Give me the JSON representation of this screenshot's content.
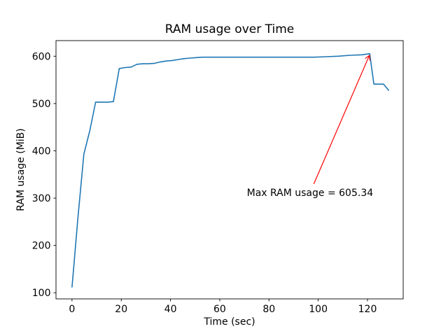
{
  "chart_data": {
    "type": "line",
    "title": "RAM usage over Time",
    "xlabel": "Time (sec)",
    "ylabel": "RAM usage (MiB)",
    "xlim": [
      -6.5,
      134.5
    ],
    "ylim": [
      87,
      633
    ],
    "xticks": [
      0,
      20,
      40,
      60,
      80,
      100,
      120
    ],
    "yticks": [
      100,
      200,
      300,
      400,
      500,
      600
    ],
    "grid": false,
    "legend": "none",
    "line_color": "#1f77b4",
    "axis_color": "#000000",
    "background_color": "#ffffff",
    "max_ram_usage": 605.34,
    "series": [
      {
        "name": "RAM usage (MiB)",
        "points": [
          [
            0,
            112
          ],
          [
            2.4,
            258
          ],
          [
            4.8,
            393
          ],
          [
            7.2,
            442
          ],
          [
            9.6,
            503
          ],
          [
            12,
            503
          ],
          [
            14.4,
            503
          ],
          [
            16.8,
            504
          ],
          [
            19.2,
            574
          ],
          [
            21.6,
            576
          ],
          [
            24,
            577
          ],
          [
            26.4,
            583
          ],
          [
            28.8,
            584
          ],
          [
            31.2,
            584
          ],
          [
            33.6,
            585
          ],
          [
            36,
            588
          ],
          [
            38.4,
            590
          ],
          [
            40.8,
            591
          ],
          [
            43.2,
            593
          ],
          [
            45.6,
            595
          ],
          [
            48,
            596
          ],
          [
            50.4,
            597
          ],
          [
            52.8,
            598
          ],
          [
            55.2,
            598
          ],
          [
            60,
            598
          ],
          [
            64.8,
            598
          ],
          [
            69.6,
            598
          ],
          [
            74.4,
            598
          ],
          [
            79.2,
            598
          ],
          [
            84,
            598
          ],
          [
            88.8,
            598
          ],
          [
            93.6,
            598
          ],
          [
            98.4,
            598
          ],
          [
            103.2,
            599
          ],
          [
            108,
            600
          ],
          [
            112.8,
            602
          ],
          [
            117.6,
            603
          ],
          [
            120.9,
            605.34
          ],
          [
            122.6,
            541
          ],
          [
            126.5,
            541
          ],
          [
            128.6,
            528
          ]
        ]
      }
    ],
    "annotation": {
      "text": "Max RAM usage = 605.34",
      "color": "#ff0000",
      "xy": [
        120.9,
        605.34
      ],
      "text_pos": [
        71,
        312
      ],
      "arrow_start": [
        98.2,
        330
      ]
    }
  }
}
